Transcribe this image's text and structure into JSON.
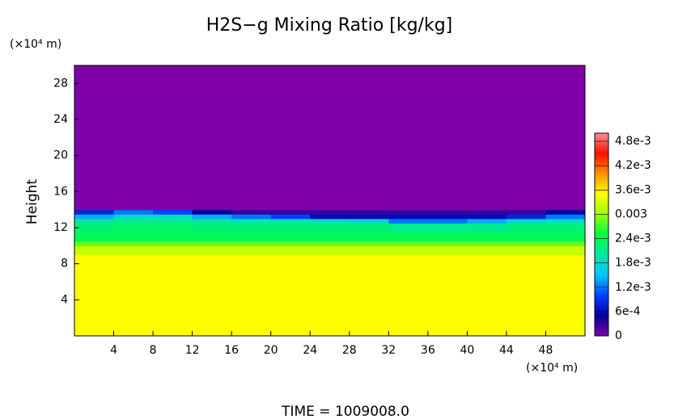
{
  "chart_data": {
    "type": "heatmap",
    "title": "H2S−g Mixing Ratio [kg/kg]",
    "y_label": "Height",
    "y_unit": "(×10⁴ m)",
    "x_unit": "(×10⁴ m)",
    "footer": "TIME = 1009008.0",
    "xlim": [
      0,
      52
    ],
    "ylim": [
      0,
      30
    ],
    "xticks": [
      4,
      8,
      12,
      16,
      20,
      24,
      28,
      32,
      36,
      40,
      44,
      48
    ],
    "yticks": [
      4,
      8,
      12,
      16,
      20,
      24,
      28
    ],
    "x_edges": [
      0,
      4,
      8,
      12,
      16,
      20,
      24,
      28,
      32,
      36,
      40,
      44,
      48,
      52
    ],
    "y_edges": [
      0,
      9,
      10,
      10.5,
      11.5,
      12.5,
      13,
      13.5,
      14,
      30
    ],
    "z": [
      [
        0.0035,
        0.0035,
        0.0035,
        0.0035,
        0.0035,
        0.0035,
        0.0035,
        0.0035,
        0.0035,
        0.0035,
        0.0035,
        0.0035,
        0.0035
      ],
      [
        0.0032,
        0.0032,
        0.0032,
        0.0032,
        0.0032,
        0.0032,
        0.0032,
        0.0032,
        0.0032,
        0.0032,
        0.0032,
        0.0032,
        0.0032
      ],
      [
        0.0028,
        0.0028,
        0.0028,
        0.0028,
        0.0028,
        0.0028,
        0.0028,
        0.0028,
        0.0028,
        0.0028,
        0.0028,
        0.0028,
        0.0028
      ],
      [
        0.0024,
        0.0024,
        0.0024,
        0.0024,
        0.0024,
        0.0024,
        0.0024,
        0.0024,
        0.0024,
        0.0024,
        0.0024,
        0.0024,
        0.0024
      ],
      [
        0.0022,
        0.0023,
        0.0023,
        0.0022,
        0.0022,
        0.0022,
        0.0022,
        0.0022,
        0.0021,
        0.0021,
        0.0021,
        0.0022,
        0.0022
      ],
      [
        0.002,
        0.0021,
        0.0021,
        0.002,
        0.002,
        0.002,
        0.0019,
        0.0018,
        0.0012,
        0.0012,
        0.0014,
        0.0018,
        0.0019
      ],
      [
        0.0014,
        0.0018,
        0.0018,
        0.0014,
        0.0012,
        0.001,
        0.0006,
        0.0006,
        0.0006,
        0.0006,
        0.0006,
        0.0008,
        0.0012
      ],
      [
        0.0008,
        0.0012,
        0.001,
        0.0005,
        0.0003,
        0.0003,
        0.0003,
        0.0003,
        0.0003,
        0.0003,
        0.0003,
        0.0003,
        0.0005
      ],
      [
        0,
        0,
        0,
        0,
        0,
        0,
        0,
        0,
        0,
        0,
        0,
        0,
        0
      ]
    ],
    "clim": [
      0,
      0.005
    ],
    "colormap": [
      "#7f00a8",
      "#0000a0",
      "#0040ff",
      "#00c8ff",
      "#00e8a0",
      "#00ff40",
      "#a0ff00",
      "#ffff00",
      "#ff9000",
      "#ff1000",
      "#ff9090"
    ],
    "colorbar_ticks": [
      0,
      {
        "value": 0.0006,
        "label": "6e-4"
      },
      {
        "value": 0.0012,
        "label": "1.2e-3"
      },
      {
        "value": 0.0018,
        "label": "1.8e-3"
      },
      {
        "value": 0.0024,
        "label": "2.4e-3"
      },
      0.003,
      {
        "value": 0.0036,
        "label": "3.6e-3"
      },
      {
        "value": 0.0042,
        "label": "4.2e-3"
      },
      {
        "value": 0.0048,
        "label": "4.8e-3"
      }
    ]
  }
}
